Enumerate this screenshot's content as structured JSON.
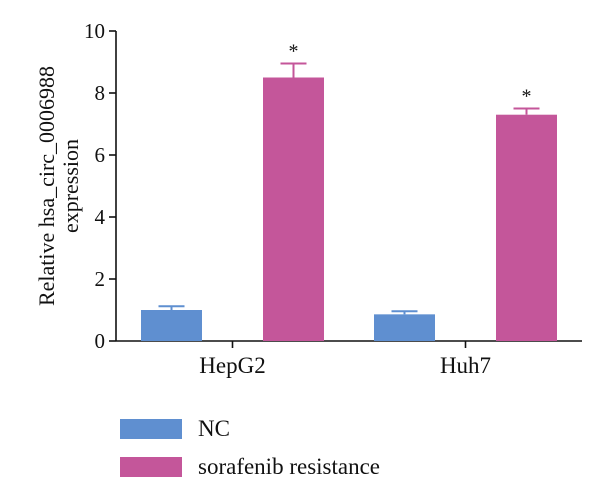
{
  "chart_data": {
    "type": "bar",
    "categories": [
      "HepG2",
      "Huh7"
    ],
    "series": [
      {
        "name": "NC",
        "values": [
          1.0,
          0.86
        ],
        "errors": [
          0.12,
          0.1
        ],
        "color": "#5f8fd0"
      },
      {
        "name": "sorafenib resistance",
        "values": [
          8.5,
          7.3
        ],
        "errors": [
          0.45,
          0.2
        ],
        "color": "#c4569a"
      }
    ],
    "significance": [
      "*",
      "*"
    ],
    "ylabel": [
      "Relative hsa_circ_0006988",
      "expression"
    ],
    "xlabel": "",
    "ylim": [
      0,
      10
    ],
    "yticks": [
      "0",
      "2",
      "4",
      "6",
      "8",
      "10"
    ],
    "grid": false,
    "legend_position": "bottom-left"
  }
}
